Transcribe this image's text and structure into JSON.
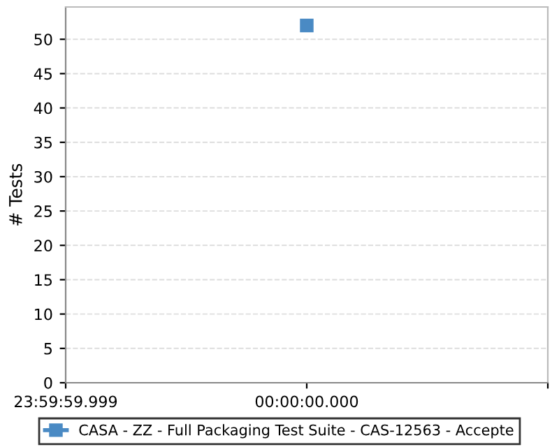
{
  "chart_data": {
    "type": "line",
    "ylabel": "# Tests",
    "categories": [
      "23:59:59.999",
      "00:00:00.000",
      null
    ],
    "series": [
      {
        "name": "CASA - ZZ - Full Packaging Test Suite - CAS-12563 - Accepte",
        "color": "#4a8ac4",
        "values": [
          null,
          52,
          null
        ]
      }
    ],
    "ylim": [
      0,
      54.7
    ],
    "yticks": [
      0,
      5,
      10,
      15,
      20,
      25,
      30,
      35,
      40,
      45,
      50
    ],
    "grid": "y",
    "legend": "bottom",
    "marker": "square",
    "line_style": "solid"
  }
}
